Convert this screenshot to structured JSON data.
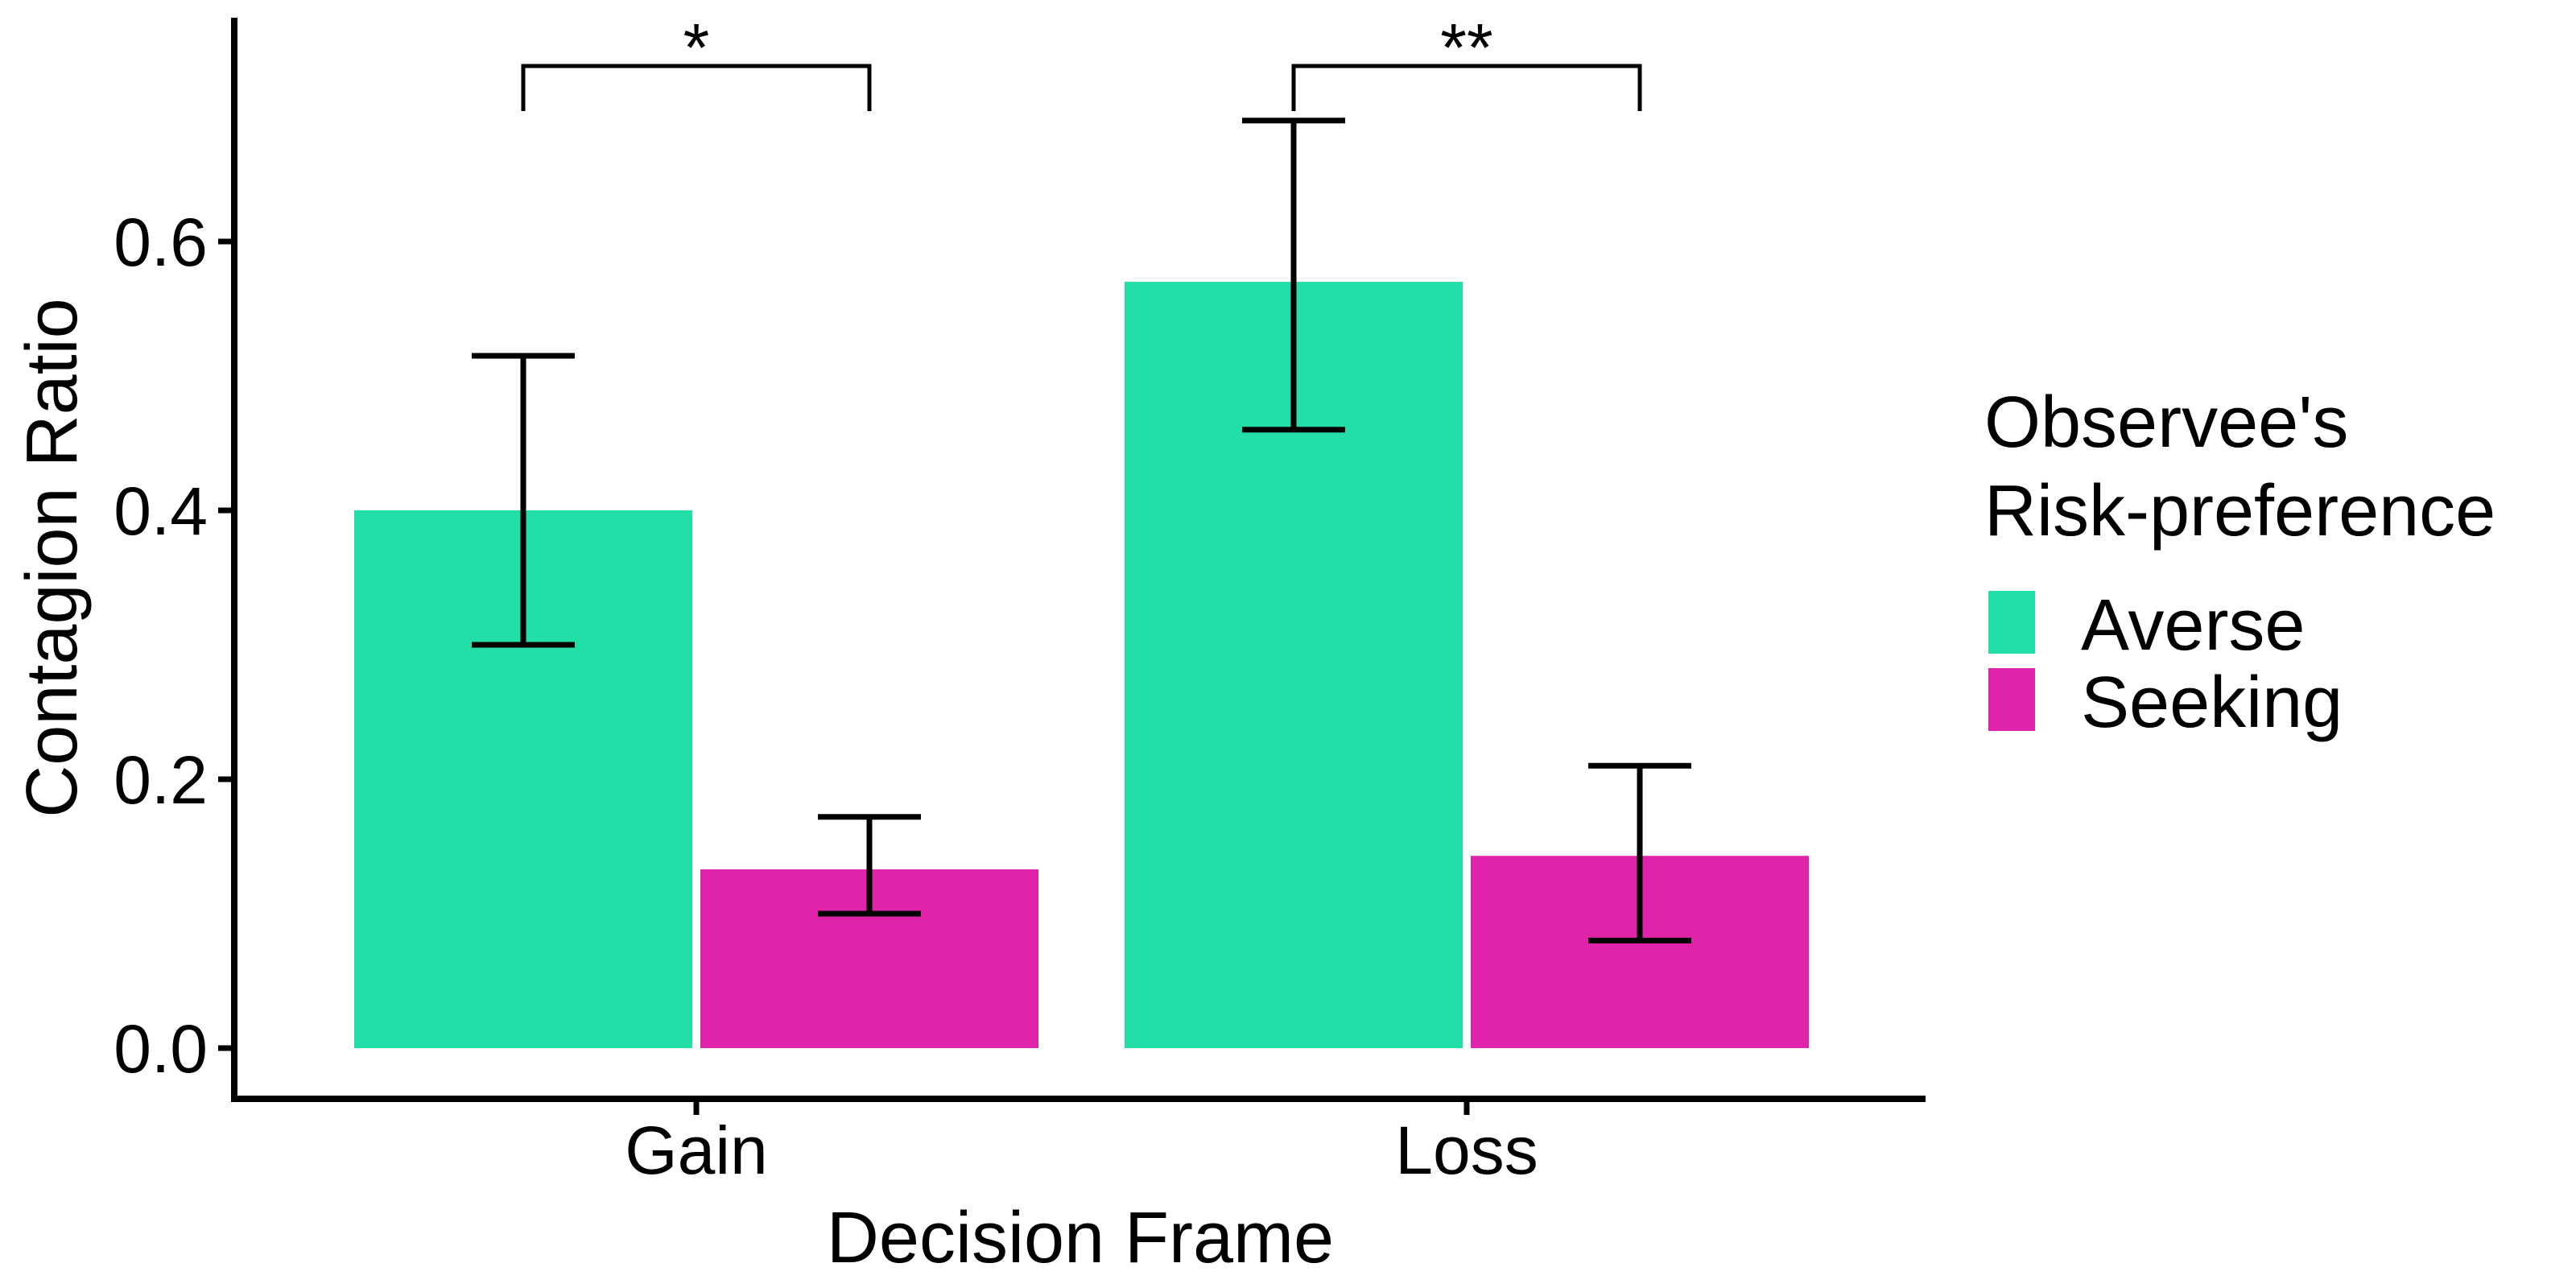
{
  "chart_data": {
    "type": "bar",
    "xlabel": "Decision Frame",
    "ylabel": "Contagion Ratio",
    "categories": [
      "Gain",
      "Loss"
    ],
    "ylim": [
      0,
      0.76
    ],
    "yticks": [
      0.0,
      0.2,
      0.4,
      0.6
    ],
    "ytick_labels": [
      "0.0",
      "0.2",
      "0.4",
      "0.6"
    ],
    "grid": false,
    "legend": {
      "title_lines": [
        "Observee's",
        "Risk-preference"
      ],
      "placement": "right"
    },
    "series": [
      {
        "name": "Averse",
        "color": "#23DFA7",
        "values": [
          0.4,
          0.57
        ],
        "error_low": [
          0.3,
          0.46
        ],
        "error_high": [
          0.515,
          0.69
        ]
      },
      {
        "name": "Seeking",
        "color": "#E024A9",
        "values": [
          0.133,
          0.143
        ],
        "error_low": [
          0.1,
          0.08
        ],
        "error_high": [
          0.172,
          0.21
        ]
      }
    ],
    "significance": [
      {
        "category": "Gain",
        "label": "*"
      },
      {
        "category": "Loss",
        "label": "**"
      }
    ]
  }
}
